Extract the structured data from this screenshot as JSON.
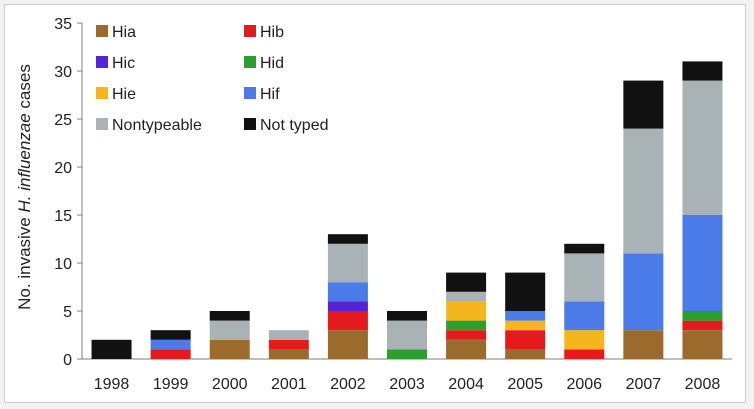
{
  "chart_data": {
    "type": "bar",
    "stacked": true,
    "categories": [
      "1998",
      "1999",
      "2000",
      "2001",
      "2002",
      "2003",
      "2004",
      "2005",
      "2006",
      "2007",
      "2008"
    ],
    "ylabel_prefix": "No. invasive ",
    "ylabel_italic": "H. influenzae",
    "ylabel_suffix": " cases",
    "ylim": [
      0,
      35
    ],
    "yticks": [
      0,
      5,
      10,
      15,
      20,
      25,
      30,
      35
    ],
    "grid": false,
    "legend_position": "top-left",
    "series": [
      {
        "name": "Hia",
        "color": "#9b6a2c",
        "values": [
          0,
          0,
          2,
          1,
          3,
          0,
          2,
          1,
          0,
          3,
          3
        ]
      },
      {
        "name": "Hib",
        "color": "#e41a1c",
        "values": [
          0,
          1,
          0,
          1,
          2,
          0,
          1,
          2,
          1,
          0,
          1
        ]
      },
      {
        "name": "Hic",
        "color": "#5522d6",
        "values": [
          0,
          0,
          0,
          0,
          1,
          0,
          0,
          0,
          0,
          0,
          0
        ]
      },
      {
        "name": "Hid",
        "color": "#2ca02c",
        "values": [
          0,
          0,
          0,
          0,
          0,
          1,
          1,
          0,
          0,
          0,
          1
        ]
      },
      {
        "name": "Hie",
        "color": "#f5b51c",
        "values": [
          0,
          0,
          0,
          0,
          0,
          0,
          2,
          1,
          2,
          0,
          0
        ]
      },
      {
        "name": "Hif",
        "color": "#4a7be8",
        "values": [
          0,
          1,
          0,
          0,
          2,
          0,
          0,
          1,
          3,
          8,
          10
        ]
      },
      {
        "name": "Nontypeable",
        "color": "#a9b2b5",
        "values": [
          0,
          0,
          2,
          1,
          4,
          3,
          1,
          0,
          5,
          13,
          14
        ]
      },
      {
        "name": "Not typed",
        "color": "#111111",
        "values": [
          2,
          1,
          1,
          0,
          1,
          1,
          2,
          4,
          1,
          5,
          2
        ]
      }
    ]
  }
}
